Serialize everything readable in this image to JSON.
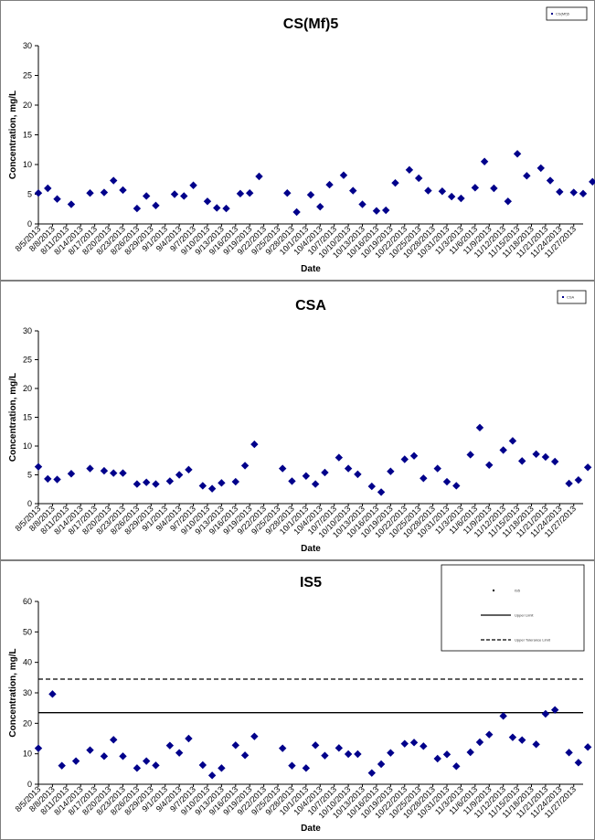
{
  "chart_data": [
    {
      "type": "scatter",
      "title": "CS(Mf)5",
      "xlabel": "Date",
      "ylabel": "Concentration, mg/L",
      "ylim": [
        0,
        30
      ],
      "yticks": [
        0,
        5,
        10,
        15,
        20,
        25,
        30
      ],
      "legend": "top-right",
      "legend_entries": [
        {
          "name": "CS(Mf)5",
          "marker": "diamond"
        }
      ],
      "x_tick_labels": [
        "8/5/2013",
        "8/8/2013",
        "8/11/2013",
        "8/14/2013",
        "8/17/2013",
        "8/20/2013",
        "8/23/2013",
        "8/26/2013",
        "8/29/2013",
        "9/1/2013",
        "9/4/2013",
        "9/7/2013",
        "9/10/2013",
        "9/13/2013",
        "9/16/2013",
        "9/19/2013",
        "9/22/2013",
        "9/25/2013",
        "9/28/2013",
        "10/1/2013",
        "10/4/2013",
        "10/7/2013",
        "10/10/2013",
        "10/13/2013",
        "10/16/2013",
        "10/19/2013",
        "10/22/2013",
        "10/25/2013",
        "10/28/2013",
        "10/31/2013",
        "11/3/2013",
        "11/6/2013",
        "11/9/2013",
        "11/12/2013",
        "11/15/2013",
        "11/18/2013",
        "11/21/2013",
        "11/24/2013",
        "11/27/2013"
      ],
      "x_range": [
        "2013-08-05",
        "2013-11-29"
      ],
      "color": "#00008B",
      "series": [
        {
          "points": [
            [
              "2013-08-05",
              5.2
            ],
            [
              "2013-08-07",
              6.0
            ],
            [
              "2013-08-09",
              4.2
            ],
            [
              "2013-08-12",
              3.3
            ],
            [
              "2013-08-16",
              5.2
            ],
            [
              "2013-08-19",
              5.3
            ],
            [
              "2013-08-21",
              7.3
            ],
            [
              "2013-08-23",
              5.7
            ],
            [
              "2013-08-26",
              2.6
            ],
            [
              "2013-08-28",
              4.7
            ],
            [
              "2013-08-30",
              3.1
            ],
            [
              "2013-09-03",
              5.0
            ],
            [
              "2013-09-05",
              4.7
            ],
            [
              "2013-09-07",
              6.5
            ],
            [
              "2013-09-10",
              3.8
            ],
            [
              "2013-09-12",
              2.7
            ],
            [
              "2013-09-14",
              2.6
            ],
            [
              "2013-09-17",
              5.1
            ],
            [
              "2013-09-19",
              5.2
            ],
            [
              "2013-09-21",
              8.0
            ],
            [
              "2013-09-27",
              5.2
            ],
            [
              "2013-09-29",
              2.0
            ],
            [
              "2013-10-02",
              4.9
            ],
            [
              "2013-10-04",
              2.9
            ],
            [
              "2013-10-06",
              6.6
            ],
            [
              "2013-10-09",
              8.2
            ],
            [
              "2013-10-11",
              5.6
            ],
            [
              "2013-10-13",
              3.3
            ],
            [
              "2013-10-16",
              2.2
            ],
            [
              "2013-10-18",
              2.3
            ],
            [
              "2013-10-20",
              6.9
            ],
            [
              "2013-10-23",
              9.1
            ],
            [
              "2013-10-25",
              7.7
            ],
            [
              "2013-10-27",
              5.6
            ],
            [
              "2013-10-30",
              5.5
            ],
            [
              "2013-11-01",
              4.6
            ],
            [
              "2013-11-03",
              4.3
            ],
            [
              "2013-11-06",
              6.1
            ],
            [
              "2013-11-08",
              10.5
            ],
            [
              "2013-11-10",
              6.0
            ],
            [
              "2013-11-13",
              3.8
            ],
            [
              "2013-11-15",
              11.8
            ],
            [
              "2013-11-17",
              8.1
            ],
            [
              "2013-11-20",
              9.4
            ],
            [
              "2013-11-22",
              7.3
            ],
            [
              "2013-11-24",
              5.4
            ],
            [
              "2013-11-27",
              5.3
            ],
            [
              "2013-11-29",
              5.1
            ],
            [
              "2013-12-01",
              7.1
            ]
          ]
        }
      ]
    },
    {
      "type": "scatter",
      "title": "CSA",
      "xlabel": "Date",
      "ylabel": "Concentration, mg/L",
      "ylim": [
        0,
        30
      ],
      "yticks": [
        0,
        5,
        10,
        15,
        20,
        25,
        30
      ],
      "legend": "top-right",
      "legend_entries": [
        {
          "name": "CSA",
          "marker": "diamond"
        }
      ],
      "x_tick_labels": [
        "8/5/2013",
        "8/8/2013",
        "8/11/2013",
        "8/14/2013",
        "8/17/2013",
        "8/20/2013",
        "8/23/2013",
        "8/26/2013",
        "8/29/2013",
        "9/1/2013",
        "9/4/2013",
        "9/7/2013",
        "9/10/2013",
        "9/13/2013",
        "9/16/2013",
        "9/19/2013",
        "9/22/2013",
        "9/25/2013",
        "9/28/2013",
        "10/1/2013",
        "10/4/2013",
        "10/7/2013",
        "10/10/2013",
        "10/13/2013",
        "10/16/2013",
        "10/19/2013",
        "10/22/2013",
        "10/25/2013",
        "10/28/2013",
        "10/31/2013",
        "11/3/2013",
        "11/6/2013",
        "11/9/2013",
        "11/12/2013",
        "11/15/2013",
        "11/18/2013",
        "11/21/2013",
        "11/24/2013",
        "11/27/2013"
      ],
      "x_range": [
        "2013-08-05",
        "2013-11-29"
      ],
      "color": "#00008B",
      "series": [
        {
          "points": [
            [
              "2013-08-05",
              6.4
            ],
            [
              "2013-08-07",
              4.3
            ],
            [
              "2013-08-09",
              4.2
            ],
            [
              "2013-08-12",
              5.2
            ],
            [
              "2013-08-16",
              6.1
            ],
            [
              "2013-08-19",
              5.7
            ],
            [
              "2013-08-21",
              5.3
            ],
            [
              "2013-08-23",
              5.3
            ],
            [
              "2013-08-26",
              3.4
            ],
            [
              "2013-08-28",
              3.7
            ],
            [
              "2013-08-30",
              3.4
            ],
            [
              "2013-09-02",
              3.9
            ],
            [
              "2013-09-04",
              5.0
            ],
            [
              "2013-09-06",
              5.9
            ],
            [
              "2013-09-09",
              3.1
            ],
            [
              "2013-09-11",
              2.6
            ],
            [
              "2013-09-13",
              3.6
            ],
            [
              "2013-09-16",
              3.8
            ],
            [
              "2013-09-18",
              6.6
            ],
            [
              "2013-09-20",
              10.3
            ],
            [
              "2013-09-26",
              6.1
            ],
            [
              "2013-09-28",
              3.9
            ],
            [
              "2013-10-01",
              4.8
            ],
            [
              "2013-10-03",
              3.4
            ],
            [
              "2013-10-05",
              5.4
            ],
            [
              "2013-10-08",
              8.0
            ],
            [
              "2013-10-10",
              6.1
            ],
            [
              "2013-10-12",
              5.1
            ],
            [
              "2013-10-15",
              3.0
            ],
            [
              "2013-10-17",
              2.0
            ],
            [
              "2013-10-19",
              5.6
            ],
            [
              "2013-10-22",
              7.7
            ],
            [
              "2013-10-24",
              8.3
            ],
            [
              "2013-10-26",
              4.4
            ],
            [
              "2013-10-29",
              6.1
            ],
            [
              "2013-10-31",
              3.8
            ],
            [
              "2013-11-02",
              3.1
            ],
            [
              "2013-11-05",
              8.5
            ],
            [
              "2013-11-07",
              13.2
            ],
            [
              "2013-11-09",
              6.7
            ],
            [
              "2013-11-12",
              9.3
            ],
            [
              "2013-11-14",
              10.9
            ],
            [
              "2013-11-16",
              7.4
            ],
            [
              "2013-11-19",
              8.6
            ],
            [
              "2013-11-21",
              8.1
            ],
            [
              "2013-11-23",
              7.3
            ],
            [
              "2013-11-26",
              3.5
            ],
            [
              "2013-11-28",
              4.1
            ],
            [
              "2013-11-30",
              6.3
            ]
          ]
        }
      ]
    },
    {
      "type": "scatter",
      "title": "IS5",
      "xlabel": "Date",
      "ylabel": "Concentration, mg/L",
      "ylim": [
        0,
        60
      ],
      "yticks": [
        0,
        10,
        20,
        30,
        40,
        50,
        60
      ],
      "legend": "top-right",
      "legend_entries": [
        {
          "name": "IS5",
          "marker": "diamond"
        },
        {
          "name": "Upper Limit",
          "style": "solid"
        },
        {
          "name": "Upper Tolerance Limit",
          "style": "dashed"
        }
      ],
      "x_tick_labels": [
        "8/5/2013",
        "8/8/2013",
        "8/11/2013",
        "8/14/2013",
        "8/17/2013",
        "8/20/2013",
        "8/23/2013",
        "8/26/2013",
        "8/29/2013",
        "9/1/2013",
        "9/4/2013",
        "9/7/2013",
        "9/10/2013",
        "9/13/2013",
        "9/16/2013",
        "9/19/2013",
        "9/22/2013",
        "9/25/2013",
        "9/28/2013",
        "10/1/2013",
        "10/4/2013",
        "10/7/2013",
        "10/10/2013",
        "10/13/2013",
        "10/16/2013",
        "10/19/2013",
        "10/22/2013",
        "10/25/2013",
        "10/28/2013",
        "10/31/2013",
        "11/3/2013",
        "11/6/2013",
        "11/9/2013",
        "11/12/2013",
        "11/15/2013",
        "11/18/2013",
        "11/21/2013",
        "11/24/2013",
        "11/27/2013"
      ],
      "x_range": [
        "2013-08-05",
        "2013-11-29"
      ],
      "color": "#00008B",
      "reference_lines": [
        {
          "value": 23.5,
          "style": "solid"
        },
        {
          "value": 34.5,
          "style": "dashed"
        }
      ],
      "series": [
        {
          "points": [
            [
              "2013-08-05",
              11.8
            ],
            [
              "2013-08-08",
              29.6
            ],
            [
              "2013-08-10",
              6.1
            ],
            [
              "2013-08-13",
              7.6
            ],
            [
              "2013-08-16",
              11.2
            ],
            [
              "2013-08-19",
              9.2
            ],
            [
              "2013-08-21",
              14.6
            ],
            [
              "2013-08-23",
              9.2
            ],
            [
              "2013-08-26",
              5.3
            ],
            [
              "2013-08-28",
              7.6
            ],
            [
              "2013-08-30",
              6.2
            ],
            [
              "2013-09-02",
              12.7
            ],
            [
              "2013-09-04",
              10.3
            ],
            [
              "2013-09-06",
              15.0
            ],
            [
              "2013-09-09",
              6.3
            ],
            [
              "2013-09-11",
              2.9
            ],
            [
              "2013-09-13",
              5.3
            ],
            [
              "2013-09-16",
              12.8
            ],
            [
              "2013-09-18",
              9.5
            ],
            [
              "2013-09-20",
              15.7
            ],
            [
              "2013-09-26",
              11.8
            ],
            [
              "2013-09-28",
              6.1
            ],
            [
              "2013-10-01",
              5.3
            ],
            [
              "2013-10-03",
              12.8
            ],
            [
              "2013-10-05",
              9.4
            ],
            [
              "2013-10-08",
              11.9
            ],
            [
              "2013-10-10",
              9.9
            ],
            [
              "2013-10-12",
              9.9
            ],
            [
              "2013-10-15",
              3.7
            ],
            [
              "2013-10-17",
              6.6
            ],
            [
              "2013-10-19",
              10.3
            ],
            [
              "2013-10-22",
              13.3
            ],
            [
              "2013-10-24",
              13.7
            ],
            [
              "2013-10-26",
              12.5
            ],
            [
              "2013-10-29",
              8.4
            ],
            [
              "2013-10-31",
              9.8
            ],
            [
              "2013-11-02",
              5.9
            ],
            [
              "2013-11-05",
              10.5
            ],
            [
              "2013-11-07",
              13.8
            ],
            [
              "2013-11-09",
              16.3
            ],
            [
              "2013-11-12",
              22.4
            ],
            [
              "2013-11-14",
              15.4
            ],
            [
              "2013-11-16",
              14.5
            ],
            [
              "2013-11-19",
              13.1
            ],
            [
              "2013-11-21",
              23.1
            ],
            [
              "2013-11-23",
              24.4
            ],
            [
              "2013-11-26",
              10.4
            ],
            [
              "2013-11-28",
              7.1
            ],
            [
              "2013-11-30",
              12.2
            ]
          ]
        }
      ]
    }
  ]
}
